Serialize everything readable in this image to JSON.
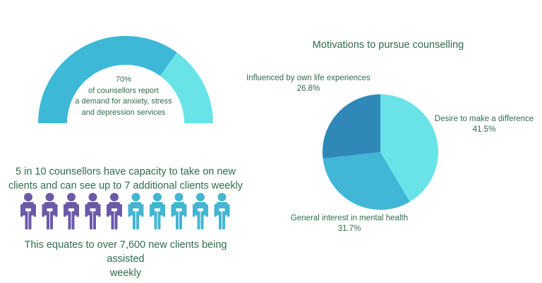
{
  "gauge": {
    "value": 0.7,
    "percent": "70%",
    "line1": "of counsellors report",
    "line2": "a demand for anxiety, stress",
    "line3": "and depression services",
    "colors": {
      "filled": "#3db8d6",
      "rest": "#6ae3e8"
    }
  },
  "capacity": {
    "line1": "5 in 10 counsellors have capacity to take on new",
    "line2": "clients and can see up to 7 additional clients weekly",
    "highlighted": 5,
    "total": 10,
    "colors": {
      "highlighted": "#6b5aa8",
      "rest": "#43b6d2"
    }
  },
  "equates": {
    "line1": "This equates to over 7,600 new clients being assisted",
    "line2": "weekly"
  },
  "chart_data": {
    "type": "pie",
    "title": "Motivations to pursue counselling",
    "slices": [
      {
        "label": "Desire to make a difference",
        "value": 41.5,
        "display": "41.5%",
        "color": "#6ae3e8"
      },
      {
        "label": "General interest in mental health",
        "value": 31.7,
        "display": "31.7%",
        "color": "#42b6d6"
      },
      {
        "label": "Influenced by own life experiences",
        "value": 26.8,
        "display": "26.8%",
        "color": "#2f88b8"
      }
    ]
  }
}
